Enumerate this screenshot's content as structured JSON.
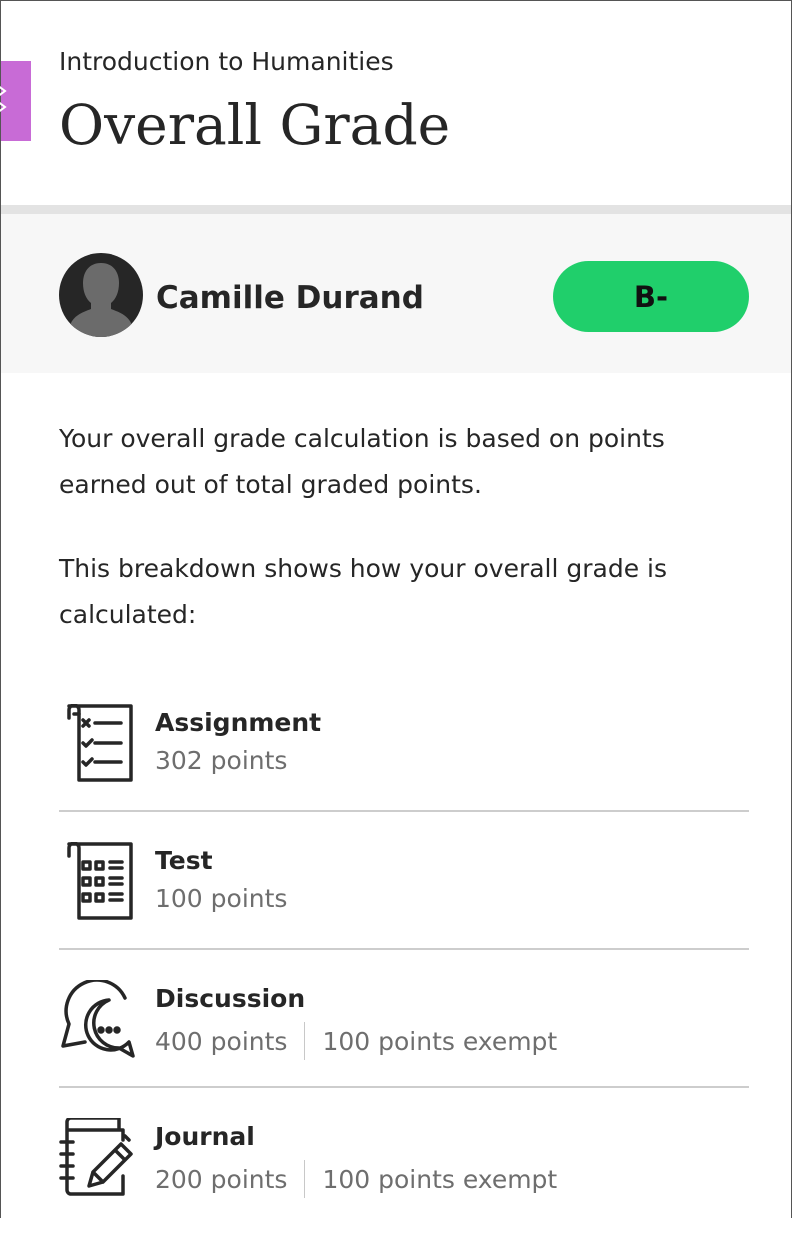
{
  "header": {
    "course": "Introduction to Humanities",
    "title": "Overall Grade"
  },
  "student": {
    "name": "Camille Durand",
    "grade": "B-",
    "grade_color": "#20cf6b"
  },
  "description": [
    "Your overall grade calculation is based on points earned out of total graded points.",
    "This breakdown shows how your overall grade is calculated:"
  ],
  "categories": [
    {
      "label": "Assignment",
      "points": "302 points",
      "icon": "assignment-checklist-icon"
    },
    {
      "label": "Test",
      "points": "100 points",
      "icon": "test-grid-icon"
    },
    {
      "label": "Discussion",
      "points": "400 points",
      "exempt": "100 points exempt",
      "icon": "discussion-bubbles-icon"
    },
    {
      "label": "Journal",
      "points": "200 points",
      "exempt": "100 points exempt",
      "icon": "journal-pencil-icon"
    }
  ]
}
